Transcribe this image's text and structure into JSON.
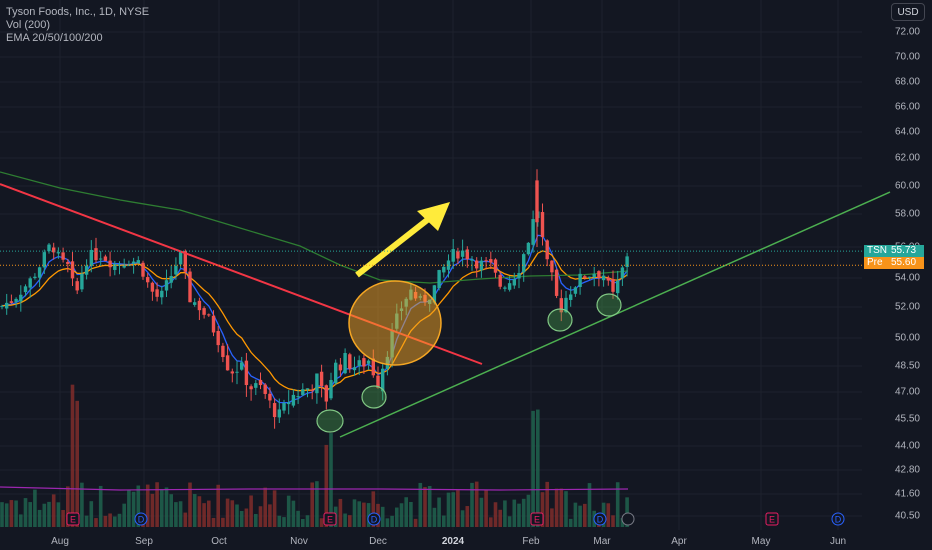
{
  "legend": {
    "symbol_line": "Tyson Foods, Inc., 1D, NYSE",
    "volume_line": "Vol (200)",
    "ema_line": "EMA 20/50/100/200"
  },
  "currency": "USD",
  "last_price": {
    "label": "TSN",
    "value": "55.73",
    "color": "#26a69a"
  },
  "pre_price": {
    "label": "Pre",
    "value": "55.60",
    "color": "#f7931a"
  },
  "y_ticks": [
    "72.00",
    "70.00",
    "68.00",
    "66.00",
    "64.00",
    "62.00",
    "60.00",
    "58.00",
    "56.00",
    "54.00",
    "52.00",
    "50.00",
    "48.50",
    "47.00",
    "45.50",
    "44.00",
    "42.80",
    "41.60",
    "40.50"
  ],
  "x_ticks": [
    "Aug",
    "Sep",
    "Oct",
    "Nov",
    "Dec",
    "2024",
    "Feb",
    "Mar",
    "Apr",
    "May",
    "Jun"
  ],
  "event_markers": [
    "E",
    "D",
    "E",
    "D",
    "E",
    "D",
    "E",
    "D"
  ],
  "colors": {
    "up": "#26a69a",
    "down": "#ef5350",
    "ema20": "#2962ff",
    "ema50": "#ff9800",
    "ema200": "#2e7d32",
    "downtrend": "#f23645",
    "uptrend": "#4caf50",
    "arrow": "#ffeb3b"
  },
  "chart_data": {
    "type": "candlestick",
    "title": "Tyson Foods, Inc., 1D, NYSE",
    "y_scale": "log",
    "ylim": [
      40.5,
      72.0
    ],
    "series": [
      {
        "name": "TSN",
        "values_approx": {
          "2023-07-24": 55.5,
          "2023-08-03": 51.5,
          "2023-09-01": 54.0,
          "2023-10-02": 51.0,
          "2023-10-27": 45.2,
          "2023-11-13": 47.5,
          "2023-12-14": 53.5,
          "2024-01-05": 55.3,
          "2024-02-01": 61.0,
          "2024-02-14": 51.5,
          "2024-03-11": 55.73
        }
      },
      {
        "name": "Vol",
        "values": []
      }
    ],
    "annotations": [
      "downtrend line",
      "uptrend support line",
      "yellow arrow",
      "circled lows"
    ]
  }
}
